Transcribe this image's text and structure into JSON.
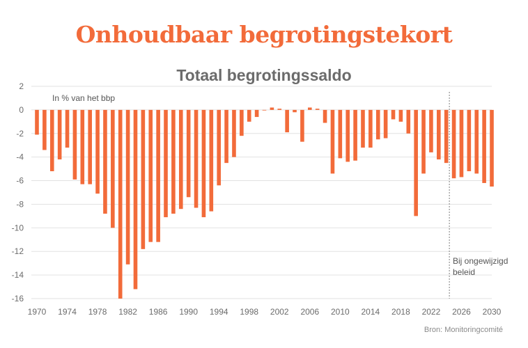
{
  "colors": {
    "accent": "#f26b3a",
    "bar": "#f26b3a",
    "grid": "#e2e2e2",
    "axis_text": "#6b6b6b",
    "divider": "#9a9a9a"
  },
  "header": {
    "title": "Onhoudbaar begrotingstekort",
    "subtitle": "Totaal begrotingssaldo"
  },
  "footer": {
    "source": "Bron: Monitoringcomité"
  },
  "chart_data": {
    "type": "bar",
    "unit_label": "In % van het bbp",
    "projection_label_lines": [
      "Bij ongewijzigd",
      "beleid"
    ],
    "projection_start_year": 2025,
    "ylim": [
      -16,
      2
    ],
    "yticks": [
      2,
      0,
      -2,
      -4,
      -6,
      -8,
      -10,
      -12,
      -14,
      -16
    ],
    "xlim": [
      1970,
      2030
    ],
    "xticks": [
      1970,
      1974,
      1978,
      1982,
      1986,
      1990,
      1994,
      1998,
      2002,
      2006,
      2010,
      2014,
      2018,
      2022,
      2026,
      2030
    ],
    "grid": true,
    "x": [
      1970,
      1971,
      1972,
      1973,
      1974,
      1975,
      1976,
      1977,
      1978,
      1979,
      1980,
      1981,
      1982,
      1983,
      1984,
      1985,
      1986,
      1987,
      1988,
      1989,
      1990,
      1991,
      1992,
      1993,
      1994,
      1995,
      1996,
      1997,
      1998,
      1999,
      2000,
      2001,
      2002,
      2003,
      2004,
      2005,
      2006,
      2007,
      2008,
      2009,
      2010,
      2011,
      2012,
      2013,
      2014,
      2015,
      2016,
      2017,
      2018,
      2019,
      2020,
      2021,
      2022,
      2023,
      2024,
      2025,
      2026,
      2027,
      2028,
      2029,
      2030
    ],
    "values": [
      -2.1,
      -3.4,
      -5.2,
      -4.2,
      -3.2,
      -5.9,
      -6.3,
      -6.3,
      -7.1,
      -8.8,
      -10.0,
      -16.0,
      -13.1,
      -15.2,
      -11.8,
      -11.2,
      -11.2,
      -9.1,
      -8.8,
      -8.4,
      -7.4,
      -8.3,
      -9.1,
      -8.6,
      -6.4,
      -4.5,
      -4.0,
      -2.2,
      -1.0,
      -0.6,
      0.0,
      0.2,
      0.1,
      -1.9,
      -0.2,
      -2.7,
      0.2,
      0.1,
      -1.1,
      -5.4,
      -4.1,
      -4.4,
      -4.3,
      -3.2,
      -3.2,
      -2.5,
      -2.4,
      -0.8,
      -1.0,
      -2.0,
      -9.0,
      -5.4,
      -3.6,
      -4.2,
      -4.5,
      -5.8,
      -5.7,
      -5.2,
      -5.4,
      -6.2,
      -6.5
    ]
  }
}
